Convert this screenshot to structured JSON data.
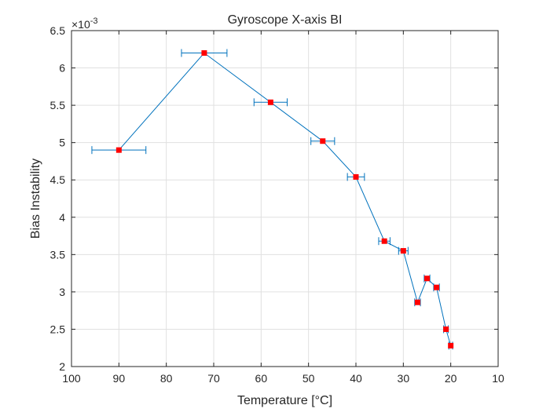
{
  "chart_data": {
    "type": "line",
    "title": "Gyroscope X-axis BI",
    "xlabel": "Temperature [°C]",
    "ylabel": "Bias Instability",
    "y_exponent_label": "×10",
    "y_exponent_power": "-3",
    "xlim": [
      100,
      10
    ],
    "x_reversed": true,
    "ylim": [
      2.0,
      6.5
    ],
    "x_ticks": [
      100,
      90,
      80,
      70,
      60,
      50,
      40,
      30,
      20,
      10
    ],
    "y_ticks": [
      2,
      2.5,
      3,
      3.5,
      4,
      4.5,
      5,
      5.5,
      6,
      6.5
    ],
    "x_tick_labels": [
      "100",
      "90",
      "80",
      "70",
      "60",
      "50",
      "40",
      "30",
      "20",
      "10"
    ],
    "y_tick_labels": [
      "2",
      "2.5",
      "3",
      "3.5",
      "4",
      "4.5",
      "5",
      "5.5",
      "6",
      "6.5"
    ],
    "grid": true,
    "series": [
      {
        "x": [
          90,
          72,
          58,
          47,
          40,
          34,
          30,
          27,
          25,
          23,
          21,
          20
        ],
        "y": [
          4.9,
          6.2,
          5.54,
          5.02,
          4.54,
          3.68,
          3.55,
          2.86,
          3.18,
          3.06,
          2.5,
          2.28
        ],
        "x_err": [
          5.7,
          4.8,
          3.5,
          2.5,
          1.8,
          1.2,
          1.0,
          0.6,
          0.6,
          0.6,
          0.5,
          0.4
        ],
        "line_color": "#0072BD",
        "marker_color": "#FF0000"
      }
    ]
  }
}
